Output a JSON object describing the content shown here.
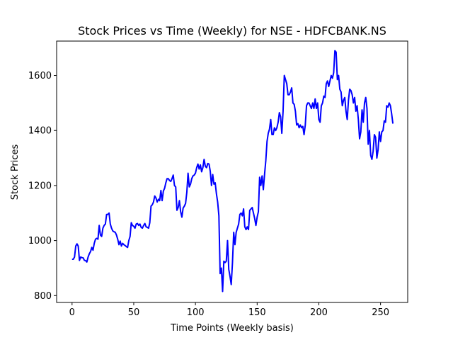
{
  "chart_data": {
    "type": "line",
    "title": "Stock Prices vs Time (Weekly) for NSE - HDFCBANK.NS",
    "xlabel": "Time Points (Weekly basis)",
    "ylabel": "Stock Prices",
    "xlim": [
      -12.5,
      272
    ],
    "ylim": [
      775,
      1725
    ],
    "xticks": [
      0,
      50,
      100,
      150,
      200,
      250
    ],
    "yticks": [
      800,
      1000,
      1200,
      1400,
      1600
    ],
    "grid": false,
    "series": [
      {
        "color": "#0000ff",
        "points": [
          [
            0,
            932
          ],
          [
            1,
            932
          ],
          [
            2,
            940
          ],
          [
            3,
            980
          ],
          [
            4,
            988
          ],
          [
            5,
            980
          ],
          [
            6,
            928
          ],
          [
            7,
            940
          ],
          [
            8,
            938
          ],
          [
            9,
            937
          ],
          [
            10,
            928
          ],
          [
            11,
            927
          ],
          [
            12,
            922
          ],
          [
            13,
            940
          ],
          [
            14,
            952
          ],
          [
            15,
            960
          ],
          [
            16,
            975
          ],
          [
            17,
            965
          ],
          [
            18,
            990
          ],
          [
            19,
            1005
          ],
          [
            20,
            1008
          ],
          [
            21,
            1005
          ],
          [
            22,
            1055
          ],
          [
            23,
            1020
          ],
          [
            24,
            1015
          ],
          [
            25,
            1045
          ],
          [
            26,
            1055
          ],
          [
            27,
            1060
          ],
          [
            28,
            1095
          ],
          [
            29,
            1095
          ],
          [
            30,
            1100
          ],
          [
            31,
            1060
          ],
          [
            32,
            1045
          ],
          [
            33,
            1035
          ],
          [
            34,
            1032
          ],
          [
            35,
            1030
          ],
          [
            36,
            1020
          ],
          [
            37,
            1005
          ],
          [
            38,
            985
          ],
          [
            39,
            998
          ],
          [
            40,
            980
          ],
          [
            41,
            990
          ],
          [
            42,
            985
          ],
          [
            43,
            982
          ],
          [
            44,
            978
          ],
          [
            45,
            975
          ],
          [
            46,
            1000
          ],
          [
            47,
            1015
          ],
          [
            48,
            1065
          ],
          [
            49,
            1055
          ],
          [
            50,
            1052
          ],
          [
            51,
            1045
          ],
          [
            52,
            1060
          ],
          [
            53,
            1062
          ],
          [
            54,
            1055
          ],
          [
            55,
            1060
          ],
          [
            56,
            1048
          ],
          [
            57,
            1045
          ],
          [
            58,
            1055
          ],
          [
            59,
            1062
          ],
          [
            60,
            1050
          ],
          [
            61,
            1048
          ],
          [
            62,
            1045
          ],
          [
            63,
            1065
          ],
          [
            64,
            1125
          ],
          [
            65,
            1130
          ],
          [
            66,
            1140
          ],
          [
            67,
            1162
          ],
          [
            68,
            1155
          ],
          [
            69,
            1140
          ],
          [
            70,
            1150
          ],
          [
            71,
            1145
          ],
          [
            72,
            1182
          ],
          [
            73,
            1145
          ],
          [
            74,
            1180
          ],
          [
            75,
            1190
          ],
          [
            76,
            1210
          ],
          [
            77,
            1225
          ],
          [
            78,
            1225
          ],
          [
            79,
            1218
          ],
          [
            80,
            1215
          ],
          [
            81,
            1225
          ],
          [
            82,
            1238
          ],
          [
            83,
            1200
          ],
          [
            84,
            1195
          ],
          [
            85,
            1110
          ],
          [
            86,
            1120
          ],
          [
            87,
            1145
          ],
          [
            88,
            1105
          ],
          [
            89,
            1085
          ],
          [
            90,
            1118
          ],
          [
            91,
            1125
          ],
          [
            92,
            1135
          ],
          [
            93,
            1175
          ],
          [
            94,
            1245
          ],
          [
            95,
            1195
          ],
          [
            96,
            1205
          ],
          [
            97,
            1225
          ],
          [
            98,
            1235
          ],
          [
            99,
            1238
          ],
          [
            100,
            1245
          ],
          [
            101,
            1265
          ],
          [
            102,
            1278
          ],
          [
            103,
            1260
          ],
          [
            104,
            1275
          ],
          [
            105,
            1250
          ],
          [
            106,
            1265
          ],
          [
            107,
            1295
          ],
          [
            108,
            1270
          ],
          [
            109,
            1265
          ],
          [
            110,
            1280
          ],
          [
            111,
            1278
          ],
          [
            112,
            1252
          ],
          [
            113,
            1200
          ],
          [
            114,
            1240
          ],
          [
            115,
            1205
          ],
          [
            116,
            1210
          ],
          [
            117,
            1170
          ],
          [
            118,
            1140
          ],
          [
            119,
            1090
          ],
          [
            120,
            880
          ],
          [
            121,
            900
          ],
          [
            122,
            815
          ],
          [
            123,
            925
          ],
          [
            124,
            920
          ],
          [
            125,
            925
          ],
          [
            126,
            1000
          ],
          [
            127,
            895
          ],
          [
            128,
            870
          ],
          [
            129,
            840
          ],
          [
            130,
            920
          ],
          [
            131,
            1030
          ],
          [
            132,
            985
          ],
          [
            133,
            1030
          ],
          [
            134,
            1045
          ],
          [
            135,
            1060
          ],
          [
            136,
            1095
          ],
          [
            137,
            1100
          ],
          [
            138,
            1090
          ],
          [
            139,
            1115
          ],
          [
            140,
            1050
          ],
          [
            141,
            1040
          ],
          [
            142,
            1050
          ],
          [
            143,
            1040
          ],
          [
            144,
            1110
          ],
          [
            145,
            1115
          ],
          [
            146,
            1120
          ],
          [
            147,
            1100
          ],
          [
            148,
            1080
          ],
          [
            149,
            1055
          ],
          [
            150,
            1085
          ],
          [
            151,
            1105
          ],
          [
            152,
            1230
          ],
          [
            153,
            1200
          ],
          [
            154,
            1235
          ],
          [
            155,
            1185
          ],
          [
            156,
            1240
          ],
          [
            157,
            1290
          ],
          [
            158,
            1360
          ],
          [
            159,
            1390
          ],
          [
            160,
            1405
          ],
          [
            161,
            1440
          ],
          [
            162,
            1385
          ],
          [
            163,
            1385
          ],
          [
            164,
            1410
          ],
          [
            165,
            1400
          ],
          [
            166,
            1410
          ],
          [
            167,
            1430
          ],
          [
            168,
            1465
          ],
          [
            169,
            1450
          ],
          [
            170,
            1390
          ],
          [
            171,
            1470
          ],
          [
            172,
            1600
          ],
          [
            173,
            1585
          ],
          [
            174,
            1570
          ],
          [
            175,
            1530
          ],
          [
            176,
            1530
          ],
          [
            177,
            1540
          ],
          [
            178,
            1555
          ],
          [
            179,
            1500
          ],
          [
            180,
            1495
          ],
          [
            181,
            1470
          ],
          [
            182,
            1420
          ],
          [
            183,
            1425
          ],
          [
            184,
            1410
          ],
          [
            185,
            1420
          ],
          [
            186,
            1410
          ],
          [
            187,
            1415
          ],
          [
            188,
            1385
          ],
          [
            189,
            1420
          ],
          [
            190,
            1490
          ],
          [
            191,
            1500
          ],
          [
            192,
            1500
          ],
          [
            193,
            1490
          ],
          [
            194,
            1480
          ],
          [
            195,
            1500
          ],
          [
            196,
            1480
          ],
          [
            197,
            1515
          ],
          [
            198,
            1480
          ],
          [
            199,
            1500
          ],
          [
            200,
            1440
          ],
          [
            201,
            1430
          ],
          [
            202,
            1490
          ],
          [
            203,
            1500
          ],
          [
            204,
            1525
          ],
          [
            205,
            1520
          ],
          [
            206,
            1570
          ],
          [
            207,
            1580
          ],
          [
            208,
            1560
          ],
          [
            209,
            1580
          ],
          [
            210,
            1600
          ],
          [
            211,
            1590
          ],
          [
            212,
            1610
          ],
          [
            213,
            1690
          ],
          [
            214,
            1685
          ],
          [
            215,
            1585
          ],
          [
            216,
            1600
          ],
          [
            217,
            1550
          ],
          [
            218,
            1540
          ],
          [
            219,
            1490
          ],
          [
            220,
            1510
          ],
          [
            221,
            1520
          ],
          [
            222,
            1470
          ],
          [
            223,
            1440
          ],
          [
            224,
            1510
          ],
          [
            225,
            1550
          ],
          [
            226,
            1545
          ],
          [
            227,
            1530
          ],
          [
            228,
            1500
          ],
          [
            229,
            1520
          ],
          [
            230,
            1470
          ],
          [
            231,
            1490
          ],
          [
            232,
            1440
          ],
          [
            233,
            1370
          ],
          [
            234,
            1395
          ],
          [
            235,
            1475
          ],
          [
            236,
            1430
          ],
          [
            237,
            1500
          ],
          [
            238,
            1520
          ],
          [
            239,
            1480
          ],
          [
            240,
            1350
          ],
          [
            241,
            1400
          ],
          [
            242,
            1310
          ],
          [
            243,
            1295
          ],
          [
            244,
            1325
          ],
          [
            245,
            1385
          ],
          [
            246,
            1375
          ],
          [
            247,
            1300
          ],
          [
            248,
            1330
          ],
          [
            249,
            1395
          ],
          [
            250,
            1360
          ],
          [
            251,
            1395
          ],
          [
            252,
            1400
          ],
          [
            253,
            1435
          ],
          [
            254,
            1430
          ],
          [
            255,
            1490
          ],
          [
            256,
            1485
          ],
          [
            257,
            1500
          ],
          [
            258,
            1490
          ],
          [
            259,
            1460
          ],
          [
            260,
            1425
          ]
        ]
      }
    ]
  }
}
